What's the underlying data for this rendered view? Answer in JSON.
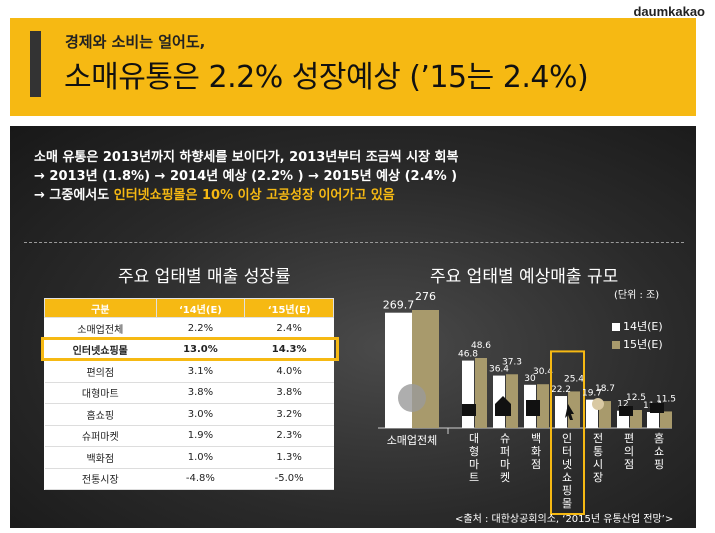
{
  "brand": "daumkakao",
  "header": {
    "subtitle": "경제와 소비는 얼어도,",
    "title": "소매유통은 2.2% 성장예상 (’15는 2.4%)"
  },
  "summary": {
    "line1": "소매 유통은  2013년까지 하향세를 보이다가, 2013년부터 조금씩 시장 회복",
    "line2": "→  2013년 (1.8%) → 2014년 예상 (2.2% ) → 2015년 예상 (2.4% )",
    "line3_prefix": "→  그중에서도 ",
    "line3_highlight": "인터넷쇼핑몰은 10% 이상 고공성장 이어가고 있음"
  },
  "growth_table": {
    "title": "주요 업태별 매출 성장률",
    "headers": [
      "구분",
      "‘14년(E)",
      "‘15년(E)"
    ],
    "rows": [
      [
        "소매업전체",
        "2.2%",
        "2.4%"
      ],
      [
        "인터넷쇼핑몰",
        "13.0%",
        "14.3%"
      ],
      [
        "편의점",
        "3.1%",
        "4.0%"
      ],
      [
        "대형마트",
        "3.8%",
        "3.8%"
      ],
      [
        "홈쇼핑",
        "3.0%",
        "3.2%"
      ],
      [
        "슈퍼마켓",
        "1.9%",
        "2.3%"
      ],
      [
        "백화점",
        "1.0%",
        "1.3%"
      ],
      [
        "전통시장",
        "-4.8%",
        "-5.0%"
      ]
    ]
  },
  "chart_data": {
    "type": "bar",
    "title": "주요 업태별 예상매출 규모",
    "unit": "(단위 : 조)",
    "categories": [
      "소매업전체",
      "대형마트",
      "슈퍼마켓",
      "백화점",
      "인터넷쇼핑몰",
      "전통시장",
      "편의점",
      "홈쇼핑"
    ],
    "series": [
      {
        "name": "14년(E)",
        "color": "#ffffff",
        "values": [
          269.7,
          46.8,
          36.4,
          30.0,
          22.2,
          19.7,
          12.0,
          11.1
        ]
      },
      {
        "name": "15년(E)",
        "color": "#a89a6c",
        "values": [
          276,
          48.6,
          37.3,
          30.4,
          25.4,
          18.7,
          12.5,
          11.5
        ]
      }
    ],
    "value_labels": [
      [
        "269.7",
        "276"
      ],
      [
        "46.8",
        "48.6"
      ],
      [
        "36.4",
        "37.3"
      ],
      [
        "30",
        "30.4"
      ],
      [
        "22.2",
        "25.4"
      ],
      [
        "19.7",
        "18.7"
      ],
      [
        "12",
        "12.5"
      ],
      [
        "11.1",
        "11.5"
      ]
    ],
    "highlight_category": "인터넷쇼핑몰",
    "colors": {
      "accent": "#f6b913"
    }
  },
  "source": "<출처 : 대한상공회의소, ‘2015년 유통산업 전망’>"
}
